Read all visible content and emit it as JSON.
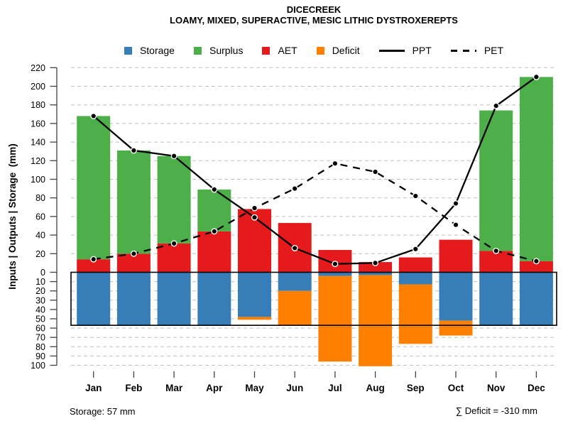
{
  "header": {
    "title": "DICECREEK",
    "subtitle": "LOAMY, MIXED, SUPERACTIVE, MESIC LITHIC DYSTROXEREPTS"
  },
  "legend": {
    "items": [
      {
        "label": "Storage",
        "swatch": "square",
        "color": "#377EB8"
      },
      {
        "label": "Surplus",
        "swatch": "square",
        "color": "#4DAF4A"
      },
      {
        "label": "AET",
        "swatch": "square",
        "color": "#E41A1C"
      },
      {
        "label": "Deficit",
        "swatch": "square",
        "color": "#FF7F00"
      },
      {
        "label": "PPT",
        "swatch": "solid-line",
        "color": "#000000"
      },
      {
        "label": "PET",
        "swatch": "dashed-line",
        "color": "#000000"
      }
    ]
  },
  "chart_data": {
    "type": "bar",
    "subtype": "stacked water-balance bars with PPT/PET line overlay, mirrored storage/deficit axis below zero",
    "categories": [
      "Jan",
      "Feb",
      "Mar",
      "Apr",
      "May",
      "Jun",
      "Jul",
      "Aug",
      "Sep",
      "Oct",
      "Nov",
      "Dec"
    ],
    "series": [
      {
        "name": "AET",
        "type": "bar",
        "stack": "up",
        "values": [
          14,
          20,
          31,
          44,
          68,
          53,
          24,
          11,
          16,
          35,
          23,
          12
        ]
      },
      {
        "name": "Surplus",
        "type": "bar",
        "stack": "up",
        "values": [
          154,
          111,
          94,
          45,
          0,
          0,
          0,
          0,
          0,
          0,
          151,
          198
        ]
      },
      {
        "name": "Storage",
        "type": "bar",
        "stack": "down",
        "values": [
          57,
          57,
          57,
          57,
          48,
          20,
          4,
          3,
          13,
          52,
          57,
          57
        ]
      },
      {
        "name": "Deficit",
        "type": "bar",
        "stack": "down",
        "values": [
          0,
          0,
          0,
          0,
          3,
          37,
          92,
          98,
          64,
          16,
          0,
          0
        ]
      },
      {
        "name": "PPT",
        "type": "line",
        "style": "solid",
        "values": [
          168,
          131,
          125,
          89,
          59,
          26,
          9,
          10,
          25,
          74,
          179,
          210
        ]
      },
      {
        "name": "PET",
        "type": "line",
        "style": "dashed",
        "values": [
          14,
          20,
          31,
          44,
          69,
          90,
          117,
          108,
          82,
          51,
          23,
          12
        ]
      }
    ],
    "y_ticks_upper": [
      0,
      20,
      40,
      60,
      80,
      100,
      120,
      140,
      160,
      180,
      200,
      220
    ],
    "y_ticks_lower": [
      10,
      20,
      30,
      40,
      50,
      60,
      70,
      80,
      90,
      100
    ],
    "y_upper_range": [
      0,
      220
    ],
    "y_lower_range": [
      0,
      100
    ],
    "ylabel": "Inputs | Outputs | Storage  (mm)",
    "storage_capacity_mm": 57,
    "deficit_total_mm": -310,
    "grid": "dashed horizontal gridlines every 20 (upper) and 10 (lower)",
    "legend_position": "top center",
    "colors": {
      "storage": "#377EB8",
      "surplus": "#4DAF4A",
      "aet": "#E41A1C",
      "deficit": "#FF7F00",
      "line": "#000000",
      "grid": "#BFBFBF",
      "axis": "#404040"
    }
  },
  "footer": {
    "storage_note": "Storage: 57 mm",
    "deficit_note": "∑ Deficit = -310 mm"
  }
}
